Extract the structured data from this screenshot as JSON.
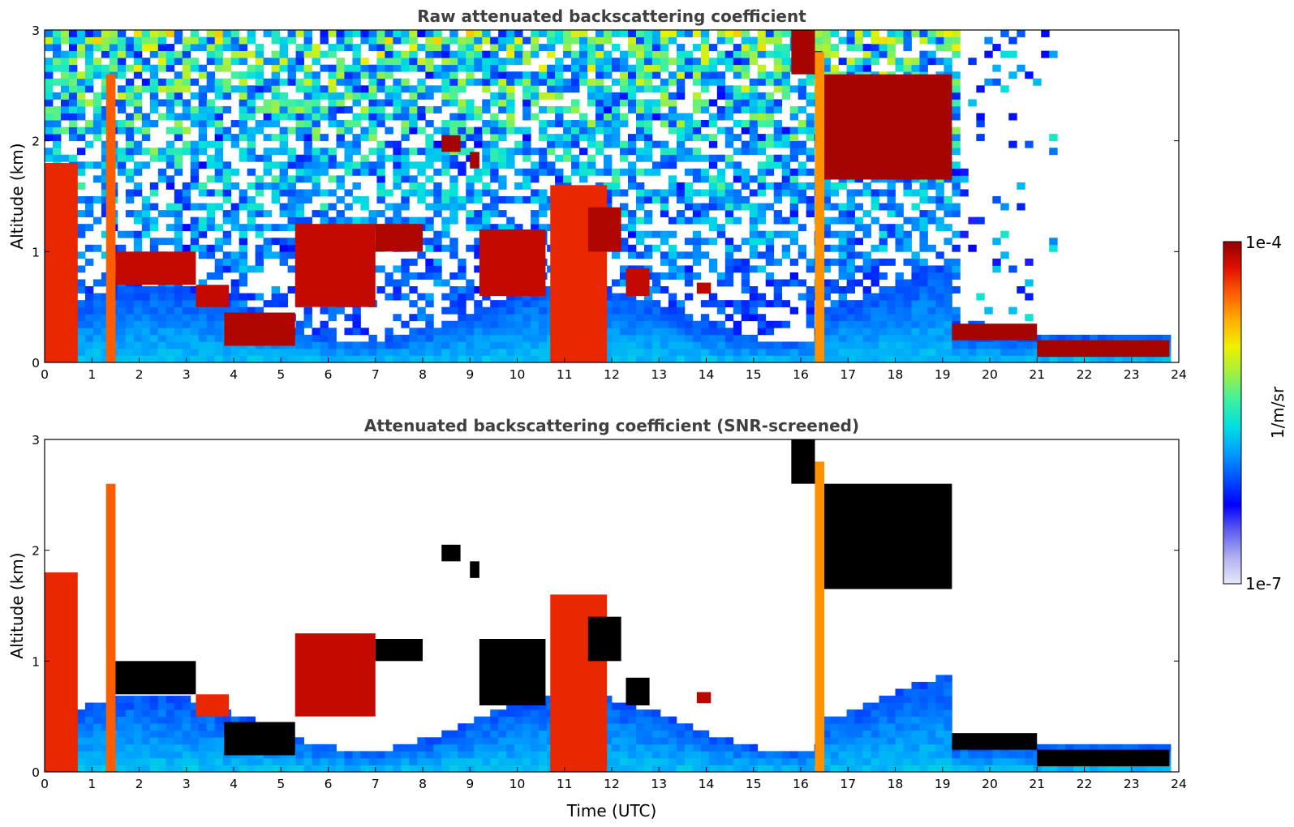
{
  "chart_data": [
    {
      "type": "heatmap",
      "title": "Raw attenuated backscattering coefficient",
      "xlabel": "",
      "ylabel": "Altitude (km)",
      "xlim": [
        0,
        24
      ],
      "ylim": [
        0,
        3
      ],
      "x_ticks": [
        "0",
        "1",
        "2",
        "3",
        "4",
        "5",
        "6",
        "7",
        "8",
        "9",
        "10",
        "11",
        "12",
        "13",
        "14",
        "15",
        "16",
        "17",
        "18",
        "19",
        "20",
        "21",
        "22",
        "23",
        "24"
      ],
      "y_ticks": [
        "0",
        "1",
        "2",
        "3"
      ],
      "grid": false,
      "screened": false,
      "layers": [
        {
          "t0": 0.0,
          "t1": 0.7,
          "z0": 0.0,
          "z1": 1.8,
          "level": 0.9
        },
        {
          "t0": 1.3,
          "t1": 1.5,
          "z0": 0.0,
          "z1": 2.6,
          "level": 0.85
        },
        {
          "t0": 1.5,
          "t1": 3.2,
          "z0": 0.7,
          "z1": 1.0,
          "level": 0.95
        },
        {
          "t0": 3.2,
          "t1": 3.9,
          "z0": 0.5,
          "z1": 0.7,
          "level": 0.95
        },
        {
          "t0": 3.8,
          "t1": 5.3,
          "z0": 0.15,
          "z1": 0.45,
          "level": 0.97
        },
        {
          "t0": 5.3,
          "t1": 7.0,
          "z0": 0.5,
          "z1": 1.25,
          "level": 0.95
        },
        {
          "t0": 7.0,
          "t1": 8.0,
          "z0": 1.0,
          "z1": 1.25,
          "level": 0.97
        },
        {
          "t0": 8.4,
          "t1": 8.8,
          "z0": 1.9,
          "z1": 2.05,
          "level": 0.98
        },
        {
          "t0": 9.0,
          "t1": 9.2,
          "z0": 1.75,
          "z1": 1.9,
          "level": 0.98
        },
        {
          "t0": 9.2,
          "t1": 10.6,
          "z0": 0.6,
          "z1": 1.2,
          "level": 0.95
        },
        {
          "t0": 10.7,
          "t1": 11.9,
          "z0": 0.0,
          "z1": 1.6,
          "level": 0.9
        },
        {
          "t0": 11.5,
          "t1": 12.2,
          "z0": 1.0,
          "z1": 1.4,
          "level": 0.97
        },
        {
          "t0": 12.3,
          "t1": 12.8,
          "z0": 0.6,
          "z1": 0.85,
          "level": 0.95
        },
        {
          "t0": 13.8,
          "t1": 14.1,
          "z0": 0.62,
          "z1": 0.72,
          "level": 0.96
        },
        {
          "t0": 15.8,
          "t1": 16.3,
          "z0": 2.6,
          "z1": 3.0,
          "level": 0.98
        },
        {
          "t0": 16.3,
          "t1": 19.2,
          "z0": 1.65,
          "z1": 2.6,
          "level": 0.98
        },
        {
          "t0": 16.3,
          "t1": 16.5,
          "z0": 0.0,
          "z1": 2.8,
          "level": 0.8
        },
        {
          "t0": 19.2,
          "t1": 21.0,
          "z0": 0.2,
          "z1": 0.35,
          "level": 0.98
        },
        {
          "t0": 21.0,
          "t1": 23.8,
          "z0": 0.05,
          "z1": 0.2,
          "level": 0.98
        }
      ]
    },
    {
      "type": "heatmap",
      "title": "Attenuated backscattering coefficient (SNR-screened)",
      "xlabel": "Time (UTC)",
      "ylabel": "Altitude (km)",
      "xlim": [
        0,
        24
      ],
      "ylim": [
        0,
        3
      ],
      "x_ticks": [
        "0",
        "1",
        "2",
        "3",
        "4",
        "5",
        "6",
        "7",
        "8",
        "9",
        "10",
        "11",
        "12",
        "13",
        "14",
        "15",
        "16",
        "17",
        "18",
        "19",
        "20",
        "21",
        "22",
        "23",
        "24"
      ],
      "y_ticks": [
        "0",
        "1",
        "2",
        "3"
      ],
      "grid": false,
      "screened": true,
      "layers": [
        {
          "t0": 0.0,
          "t1": 0.7,
          "z0": 0.0,
          "z1": 1.8,
          "level": 0.9
        },
        {
          "t0": 1.3,
          "t1": 1.5,
          "z0": 0.0,
          "z1": 2.6,
          "level": 0.85
        },
        {
          "t0": 1.5,
          "t1": 3.2,
          "z0": 0.7,
          "z1": 1.0,
          "level": 1.0
        },
        {
          "t0": 3.2,
          "t1": 3.9,
          "z0": 0.5,
          "z1": 0.7,
          "level": 0.9
        },
        {
          "t0": 3.8,
          "t1": 5.3,
          "z0": 0.15,
          "z1": 0.45,
          "level": 1.0
        },
        {
          "t0": 5.3,
          "t1": 7.0,
          "z0": 0.5,
          "z1": 1.25,
          "level": 0.95
        },
        {
          "t0": 7.0,
          "t1": 8.0,
          "z0": 1.0,
          "z1": 1.2,
          "level": 1.0
        },
        {
          "t0": 8.4,
          "t1": 8.8,
          "z0": 1.9,
          "z1": 2.05,
          "level": 1.0
        },
        {
          "t0": 9.0,
          "t1": 9.2,
          "z0": 1.75,
          "z1": 1.9,
          "level": 1.0
        },
        {
          "t0": 9.2,
          "t1": 10.6,
          "z0": 0.6,
          "z1": 1.2,
          "level": 1.0
        },
        {
          "t0": 10.7,
          "t1": 11.9,
          "z0": 0.0,
          "z1": 1.6,
          "level": 0.9
        },
        {
          "t0": 11.5,
          "t1": 12.2,
          "z0": 1.0,
          "z1": 1.4,
          "level": 1.0
        },
        {
          "t0": 12.3,
          "t1": 12.8,
          "z0": 0.6,
          "z1": 0.85,
          "level": 1.0
        },
        {
          "t0": 13.8,
          "t1": 14.1,
          "z0": 0.62,
          "z1": 0.72,
          "level": 0.96
        },
        {
          "t0": 15.8,
          "t1": 16.3,
          "z0": 2.6,
          "z1": 3.0,
          "level": 1.0
        },
        {
          "t0": 16.3,
          "t1": 19.2,
          "z0": 1.65,
          "z1": 2.6,
          "level": 1.0
        },
        {
          "t0": 16.3,
          "t1": 16.5,
          "z0": 0.0,
          "z1": 2.8,
          "level": 0.8
        },
        {
          "t0": 19.2,
          "t1": 21.0,
          "z0": 0.2,
          "z1": 0.35,
          "level": 1.0
        },
        {
          "t0": 21.0,
          "t1": 23.8,
          "z0": 0.05,
          "z1": 0.2,
          "level": 1.0
        }
      ]
    }
  ],
  "colorbar": {
    "label": "1/m/sr",
    "max_label": "1e-4",
    "min_label": "1e-7",
    "scale": "log",
    "range": [
      1e-07,
      0.0001
    ],
    "colormap": [
      "#e8e8f8",
      "#b0b0f0",
      "#6060f0",
      "#0000ff",
      "#0050ff",
      "#00a0ff",
      "#00e0e0",
      "#40f0a0",
      "#a0f040",
      "#f0f000",
      "#ffb000",
      "#ff6000",
      "#e01000",
      "#900000"
    ]
  }
}
